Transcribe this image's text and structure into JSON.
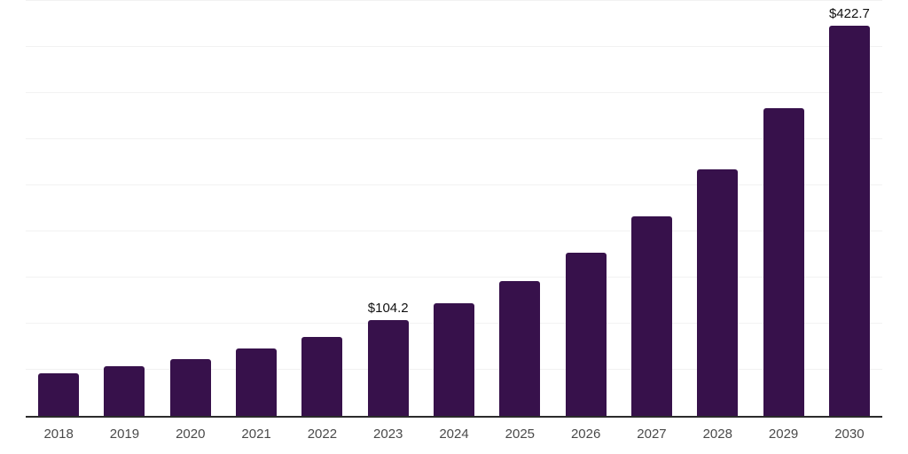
{
  "chart_data": {
    "type": "bar",
    "title": "",
    "xlabel": "",
    "ylabel": "",
    "categories": [
      "2018",
      "2019",
      "2020",
      "2021",
      "2022",
      "2023",
      "2024",
      "2025",
      "2026",
      "2027",
      "2028",
      "2029",
      "2030"
    ],
    "values": [
      45.8,
      53.5,
      61.8,
      73.0,
      85.8,
      104.2,
      122.2,
      146.1,
      177.4,
      216.5,
      267.3,
      334.0,
      422.7
    ],
    "data_labels": {
      "2023": "$104.2",
      "2030": "$422.7"
    },
    "ylim": [
      0,
      450
    ],
    "gridline_step": 50,
    "grid": "horizontal",
    "legend": "none",
    "colors": {
      "bar": "#37114B",
      "axis_line": "#2b2b2b",
      "gridline": "#f2f2f2",
      "tick_label": "#4a4a4a",
      "data_label": "#111111",
      "background": "#ffffff"
    }
  }
}
